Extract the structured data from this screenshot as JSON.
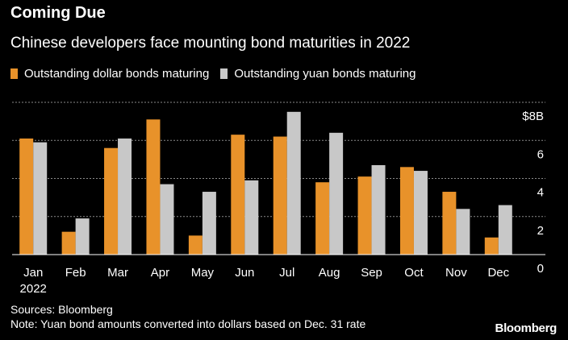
{
  "header": {
    "title": "Coming Due",
    "subtitle": "Chinese developers face mounting bond maturities in 2022"
  },
  "footer": {
    "sources": "Sources: Bloomberg",
    "note": "Note: Yuan bond amounts converted into dollars based on Dec. 31 rate"
  },
  "brand": "Bloomberg",
  "colors": {
    "background": "#000000",
    "dollar": "#e8922a",
    "yuan": "#c8c8c8",
    "grid": "#8a8a8a",
    "text": "#ffffff"
  },
  "chart_data": {
    "type": "bar",
    "title": "Coming Due",
    "subtitle": "Chinese developers face mounting bond maturities in 2022",
    "categories": [
      "Jan",
      "Feb",
      "Mar",
      "Apr",
      "May",
      "Jun",
      "Jul",
      "Aug",
      "Sep",
      "Oct",
      "Nov",
      "Dec"
    ],
    "category_sublabels": [
      "2022",
      "",
      "",
      "",
      "",
      "",
      "",
      "",
      "",
      "",
      "",
      ""
    ],
    "series": [
      {
        "name": "Outstanding dollar bonds maturing",
        "color": "#e8922a",
        "values": [
          6.1,
          1.2,
          5.6,
          7.1,
          1.0,
          6.3,
          6.2,
          3.8,
          4.1,
          4.6,
          3.3,
          0.9
        ]
      },
      {
        "name": "Outstanding yuan bonds maturing",
        "color": "#c8c8c8",
        "values": [
          5.9,
          1.9,
          6.1,
          3.7,
          3.3,
          3.9,
          7.5,
          6.4,
          4.7,
          4.4,
          2.4,
          2.6
        ]
      }
    ],
    "yticks": [
      {
        "value": 0,
        "label": "0"
      },
      {
        "value": 2,
        "label": "2"
      },
      {
        "value": 4,
        "label": "4"
      },
      {
        "value": 6,
        "label": "6"
      },
      {
        "value": 8,
        "label": "$8B"
      }
    ],
    "ylim": [
      0,
      8
    ],
    "xlabel": "",
    "ylabel": "",
    "grid": true,
    "y_axis_side": "right",
    "legend_position": "top-left"
  }
}
